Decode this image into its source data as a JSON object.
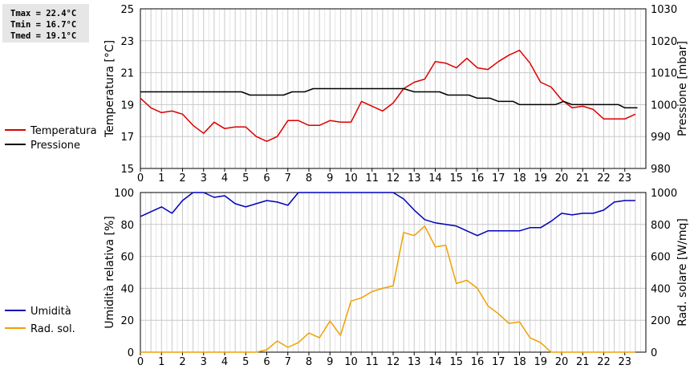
{
  "stats": {
    "tmax": "Tmax = 22.4°C",
    "tmin": "Tmin = 16.7°C",
    "tmed": "Tmed = 19.1°C"
  },
  "colors": {
    "temperature": "#dd0000",
    "pressure": "#000000",
    "humidity": "#0000bb",
    "solar": "#f0a000",
    "grid": "#cccccc"
  },
  "chart_data": [
    {
      "type": "line",
      "title": "",
      "xlabel": "",
      "ylabel": "Temperatura [°C]",
      "ylabel_right": "Pressione [mbar]",
      "xlim": [
        0,
        24
      ],
      "ylim": [
        15,
        25
      ],
      "ylim_right": [
        980,
        1030
      ],
      "x_ticks": [
        "0",
        "1",
        "2",
        "3",
        "4",
        "5",
        "6",
        "7",
        "8",
        "9",
        "10",
        "11",
        "12",
        "13",
        "14",
        "15",
        "16",
        "17",
        "18",
        "19",
        "20",
        "21",
        "22",
        "23"
      ],
      "y_ticks": [
        "15",
        "17",
        "19",
        "21",
        "23",
        "25"
      ],
      "y_ticks_right": [
        "980",
        "990",
        "1000",
        "1010",
        "1020",
        "1030"
      ],
      "grid": true,
      "legend": "left",
      "series": [
        {
          "name": "Temperatura",
          "axis": "left",
          "values": [
            [
              0,
              19.4
            ],
            [
              0.5,
              18.8
            ],
            [
              1,
              18.5
            ],
            [
              1.5,
              18.6
            ],
            [
              2,
              18.4
            ],
            [
              2.5,
              17.7
            ],
            [
              3,
              17.2
            ],
            [
              3.5,
              17.9
            ],
            [
              4,
              17.5
            ],
            [
              4.5,
              17.6
            ],
            [
              5,
              17.6
            ],
            [
              5.5,
              17.0
            ],
            [
              6,
              16.7
            ],
            [
              6.5,
              17.0
            ],
            [
              7,
              18.0
            ],
            [
              7.5,
              18.0
            ],
            [
              8,
              17.7
            ],
            [
              8.5,
              17.7
            ],
            [
              9,
              18.0
            ],
            [
              9.5,
              17.9
            ],
            [
              10,
              17.9
            ],
            [
              10.5,
              19.2
            ],
            [
              11,
              18.9
            ],
            [
              11.5,
              18.6
            ],
            [
              12,
              19.1
            ],
            [
              12.5,
              20.0
            ],
            [
              13,
              20.4
            ],
            [
              13.5,
              20.6
            ],
            [
              14,
              21.7
            ],
            [
              14.5,
              21.6
            ],
            [
              15,
              21.3
            ],
            [
              15.5,
              21.9
            ],
            [
              16,
              21.3
            ],
            [
              16.5,
              21.2
            ],
            [
              17,
              21.7
            ],
            [
              17.5,
              22.1
            ],
            [
              18,
              22.4
            ],
            [
              18.5,
              21.6
            ],
            [
              19,
              20.4
            ],
            [
              19.5,
              20.1
            ],
            [
              20,
              19.3
            ],
            [
              20.5,
              18.8
            ],
            [
              21,
              18.9
            ],
            [
              21.5,
              18.7
            ],
            [
              22,
              18.1
            ],
            [
              22.5,
              18.1
            ],
            [
              23,
              18.1
            ],
            [
              23.5,
              18.4
            ]
          ]
        },
        {
          "name": "Pressione",
          "axis": "right",
          "values": [
            [
              0,
              1004
            ],
            [
              4.8,
              1004
            ],
            [
              5.2,
              1003
            ],
            [
              6.8,
              1003
            ],
            [
              7.2,
              1004
            ],
            [
              7.8,
              1004
            ],
            [
              8.2,
              1005
            ],
            [
              12.5,
              1005
            ],
            [
              13,
              1004
            ],
            [
              14.2,
              1004
            ],
            [
              14.6,
              1003
            ],
            [
              15.6,
              1003
            ],
            [
              16,
              1002
            ],
            [
              16.6,
              1002
            ],
            [
              17,
              1001
            ],
            [
              17.7,
              1001
            ],
            [
              18,
              1000
            ],
            [
              19.7,
              1000
            ],
            [
              20.1,
              1001
            ],
            [
              20.5,
              1000
            ],
            [
              22.7,
              1000
            ],
            [
              23,
              999
            ],
            [
              23.6,
              999
            ]
          ]
        }
      ]
    },
    {
      "type": "line",
      "title": "",
      "xlabel": "",
      "ylabel": "Umidità relativa [%]",
      "ylabel_right": "Rad. solare [W/mq]",
      "xlim": [
        0,
        24
      ],
      "ylim": [
        0,
        100
      ],
      "ylim_right": [
        0,
        1000
      ],
      "x_ticks": [
        "0",
        "1",
        "2",
        "3",
        "4",
        "5",
        "6",
        "7",
        "8",
        "9",
        "10",
        "11",
        "12",
        "13",
        "14",
        "15",
        "16",
        "17",
        "18",
        "19",
        "20",
        "21",
        "22",
        "23"
      ],
      "y_ticks": [
        "0",
        "20",
        "40",
        "60",
        "80",
        "100"
      ],
      "y_ticks_right": [
        "0",
        "200",
        "400",
        "600",
        "800",
        "1000"
      ],
      "grid": true,
      "legend": "left",
      "series": [
        {
          "name": "Umidità",
          "axis": "left",
          "values": [
            [
              0,
              85
            ],
            [
              0.5,
              88
            ],
            [
              1,
              91
            ],
            [
              1.5,
              87
            ],
            [
              2,
              95
            ],
            [
              2.5,
              100
            ],
            [
              3,
              100
            ],
            [
              3.5,
              97
            ],
            [
              4,
              98
            ],
            [
              4.5,
              93
            ],
            [
              5,
              91
            ],
            [
              5.5,
              93
            ],
            [
              6,
              95
            ],
            [
              6.5,
              94
            ],
            [
              7,
              92
            ],
            [
              7.5,
              100
            ],
            [
              12,
              100
            ],
            [
              12.5,
              96
            ],
            [
              13,
              89
            ],
            [
              13.5,
              83
            ],
            [
              14,
              81
            ],
            [
              14.5,
              80
            ],
            [
              15,
              79
            ],
            [
              15.5,
              76
            ],
            [
              16,
              73
            ],
            [
              16.5,
              76
            ],
            [
              17,
              76
            ],
            [
              17.5,
              76
            ],
            [
              18,
              76
            ],
            [
              18.5,
              78
            ],
            [
              19,
              78
            ],
            [
              19.5,
              82
            ],
            [
              20,
              87
            ],
            [
              20.5,
              86
            ],
            [
              21,
              87
            ],
            [
              21.5,
              87
            ],
            [
              22,
              89
            ],
            [
              22.5,
              94
            ],
            [
              23,
              95
            ],
            [
              23.5,
              95
            ]
          ]
        },
        {
          "name": "Rad. sol.",
          "axis": "right",
          "values": [
            [
              0,
              0
            ],
            [
              5.5,
              0
            ],
            [
              6,
              15
            ],
            [
              6.5,
              70
            ],
            [
              7,
              30
            ],
            [
              7.5,
              60
            ],
            [
              8,
              120
            ],
            [
              8.5,
              90
            ],
            [
              9,
              195
            ],
            [
              9.5,
              105
            ],
            [
              10,
              320
            ],
            [
              10.5,
              340
            ],
            [
              11,
              380
            ],
            [
              11.5,
              400
            ],
            [
              12,
              415
            ],
            [
              12.5,
              750
            ],
            [
              13,
              730
            ],
            [
              13.5,
              790
            ],
            [
              14,
              660
            ],
            [
              14.5,
              670
            ],
            [
              15,
              430
            ],
            [
              15.5,
              450
            ],
            [
              16,
              400
            ],
            [
              16.5,
              290
            ],
            [
              17,
              240
            ],
            [
              17.5,
              180
            ],
            [
              18,
              190
            ],
            [
              18.5,
              90
            ],
            [
              19,
              60
            ],
            [
              19.5,
              0
            ],
            [
              23.5,
              0
            ]
          ]
        }
      ]
    }
  ]
}
